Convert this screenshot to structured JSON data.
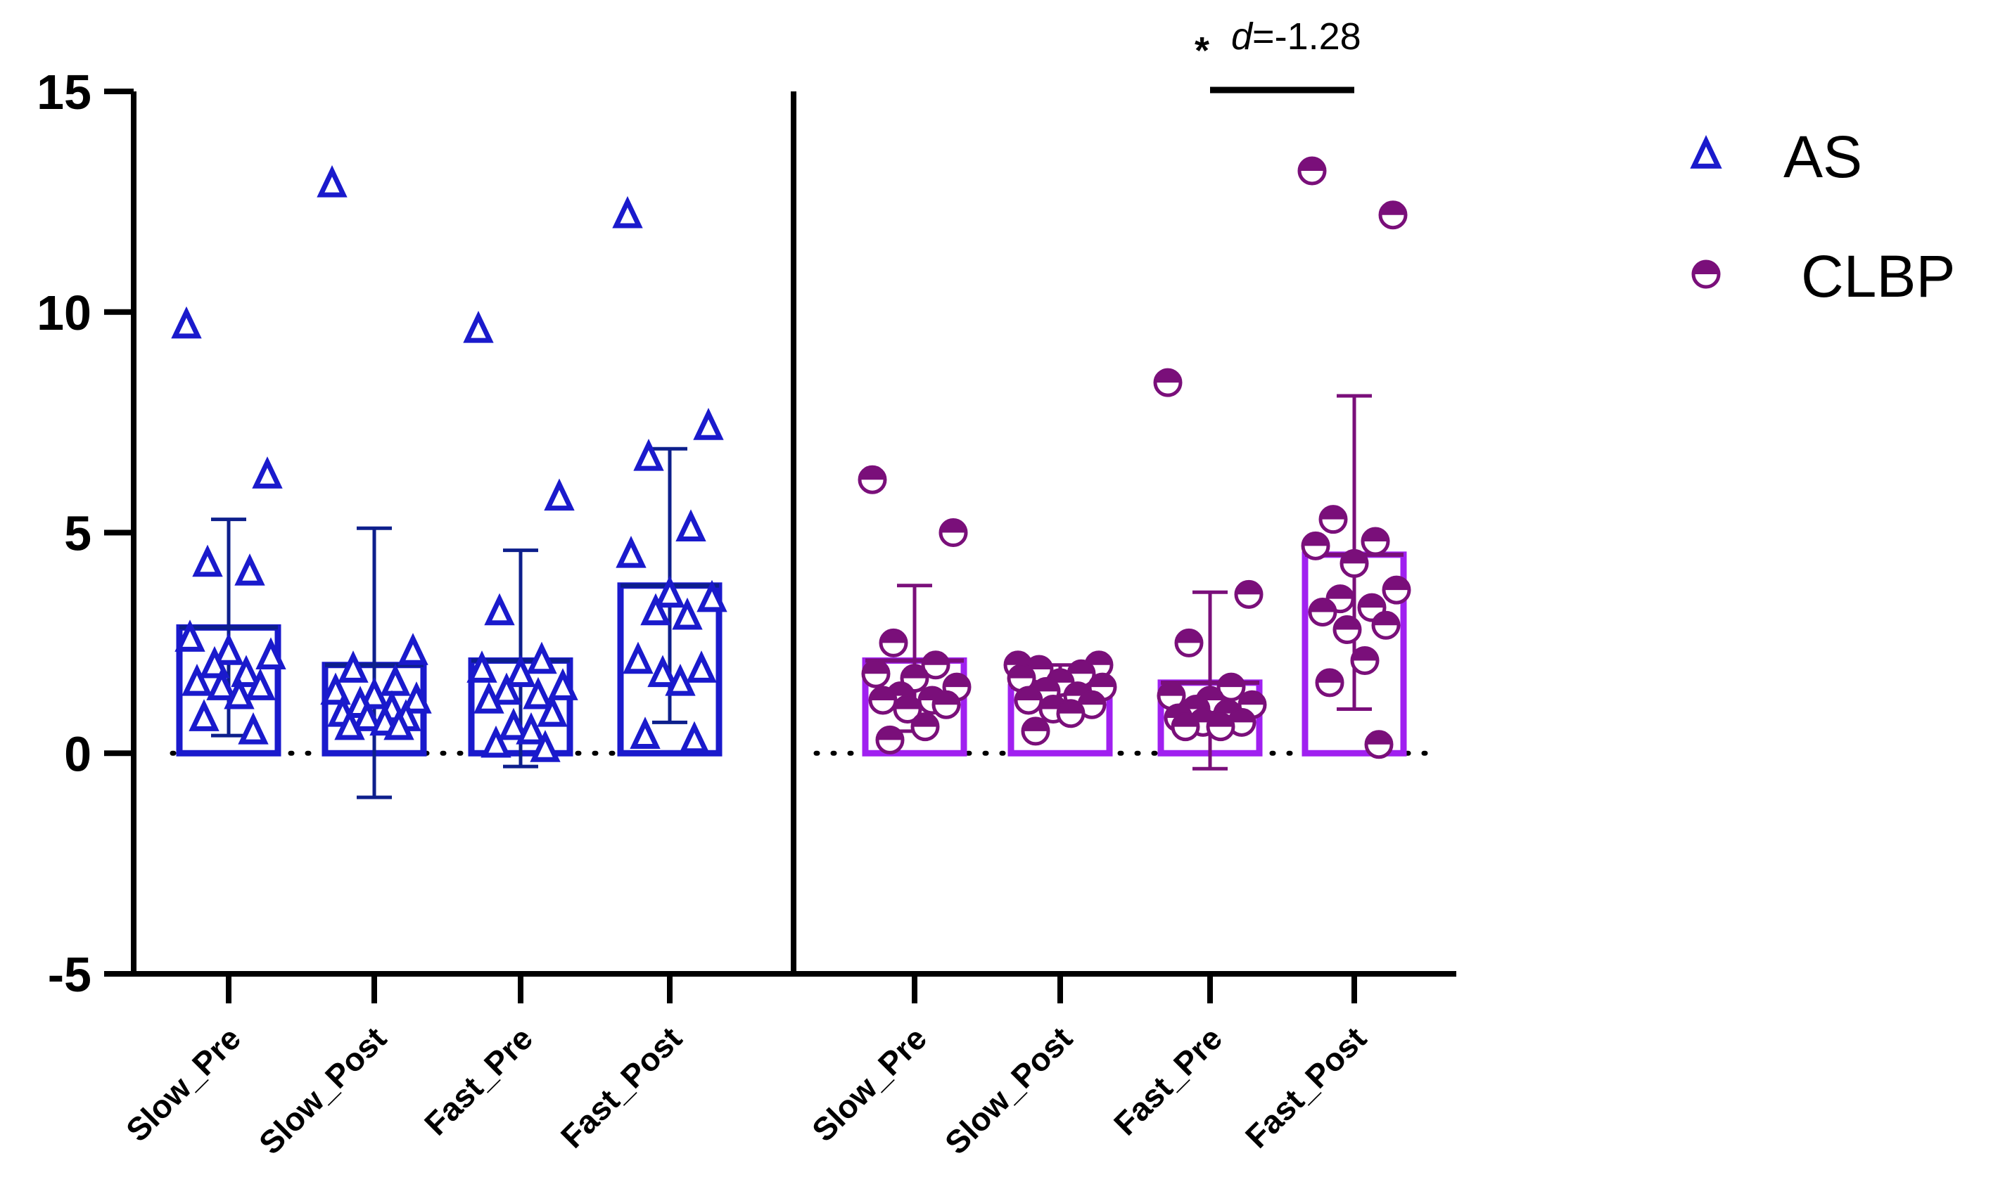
{
  "chart_data": {
    "type": "bar",
    "title": "",
    "xlabel": "",
    "ylabel": "",
    "ylim": [
      -5,
      15
    ],
    "yticks": [
      -5,
      0,
      5,
      10,
      15
    ],
    "reference_line": 0,
    "categories": [
      "Slow_Pre",
      "Slow_Post",
      "Fast_Pre",
      "Fast_Post"
    ],
    "series": [
      {
        "name": "AS",
        "color": "#1a1acc",
        "dark_color": "#0d1f8c",
        "marker": "triangle",
        "means": [
          2.85,
          2.0,
          2.1,
          3.8
        ],
        "sd_upper": [
          5.3,
          5.1,
          4.6,
          6.9
        ],
        "sd_lower": [
          0.4,
          -1.0,
          -0.3,
          0.7
        ],
        "points": [
          [
            9.7,
            6.3,
            4.3,
            4.1,
            2.6,
            2.3,
            2.2,
            2.0,
            1.8,
            1.6,
            1.5,
            1.5,
            1.3,
            0.8,
            0.5
          ],
          [
            12.9,
            2.3,
            1.9,
            1.6,
            1.4,
            1.3,
            1.2,
            1.1,
            1.0,
            0.9,
            0.8,
            0.8,
            0.7,
            0.6,
            0.6
          ],
          [
            9.6,
            5.8,
            3.2,
            2.1,
            1.9,
            1.8,
            1.5,
            1.4,
            1.3,
            1.2,
            0.9,
            0.6,
            0.5,
            0.2,
            0.1
          ],
          [
            12.2,
            7.4,
            6.7,
            5.1,
            4.5,
            3.6,
            3.5,
            3.2,
            3.1,
            2.1,
            1.9,
            1.8,
            1.6,
            0.4,
            0.3
          ]
        ]
      },
      {
        "name": "CLBP",
        "color": "#a020f0",
        "dark_color": "#7a0f7a",
        "marker": "half-circle",
        "means": [
          2.1,
          1.5,
          1.6,
          4.5
        ],
        "sd_upper": [
          3.8,
          2.0,
          3.65,
          8.1
        ],
        "sd_lower": [
          0.5,
          1.0,
          -0.35,
          1.0
        ],
        "points": [
          [
            6.2,
            5.0,
            2.5,
            2.0,
            1.8,
            1.7,
            1.5,
            1.3,
            1.2,
            1.2,
            1.1,
            1.0,
            0.6,
            0.3
          ],
          [
            2.0,
            2.0,
            1.9,
            1.8,
            1.7,
            1.6,
            1.5,
            1.4,
            1.3,
            1.2,
            1.1,
            1.0,
            0.9,
            0.5
          ],
          [
            8.4,
            3.6,
            2.5,
            1.5,
            1.3,
            1.2,
            1.1,
            1.0,
            0.9,
            0.8,
            0.7,
            0.7,
            0.6,
            0.6
          ],
          [
            13.2,
            12.2,
            5.3,
            4.8,
            4.7,
            4.3,
            3.7,
            3.5,
            3.3,
            3.2,
            2.9,
            2.8,
            2.1,
            1.6,
            0.2
          ]
        ]
      }
    ],
    "annotation": {
      "symbol": "*",
      "d_label": "d",
      "d_value": "=-1.28",
      "group": "CLBP",
      "from": "Fast_Pre",
      "to": "Fast_Post"
    },
    "legend": {
      "position": "top-right",
      "entries": [
        "AS",
        "CLBP"
      ]
    }
  }
}
